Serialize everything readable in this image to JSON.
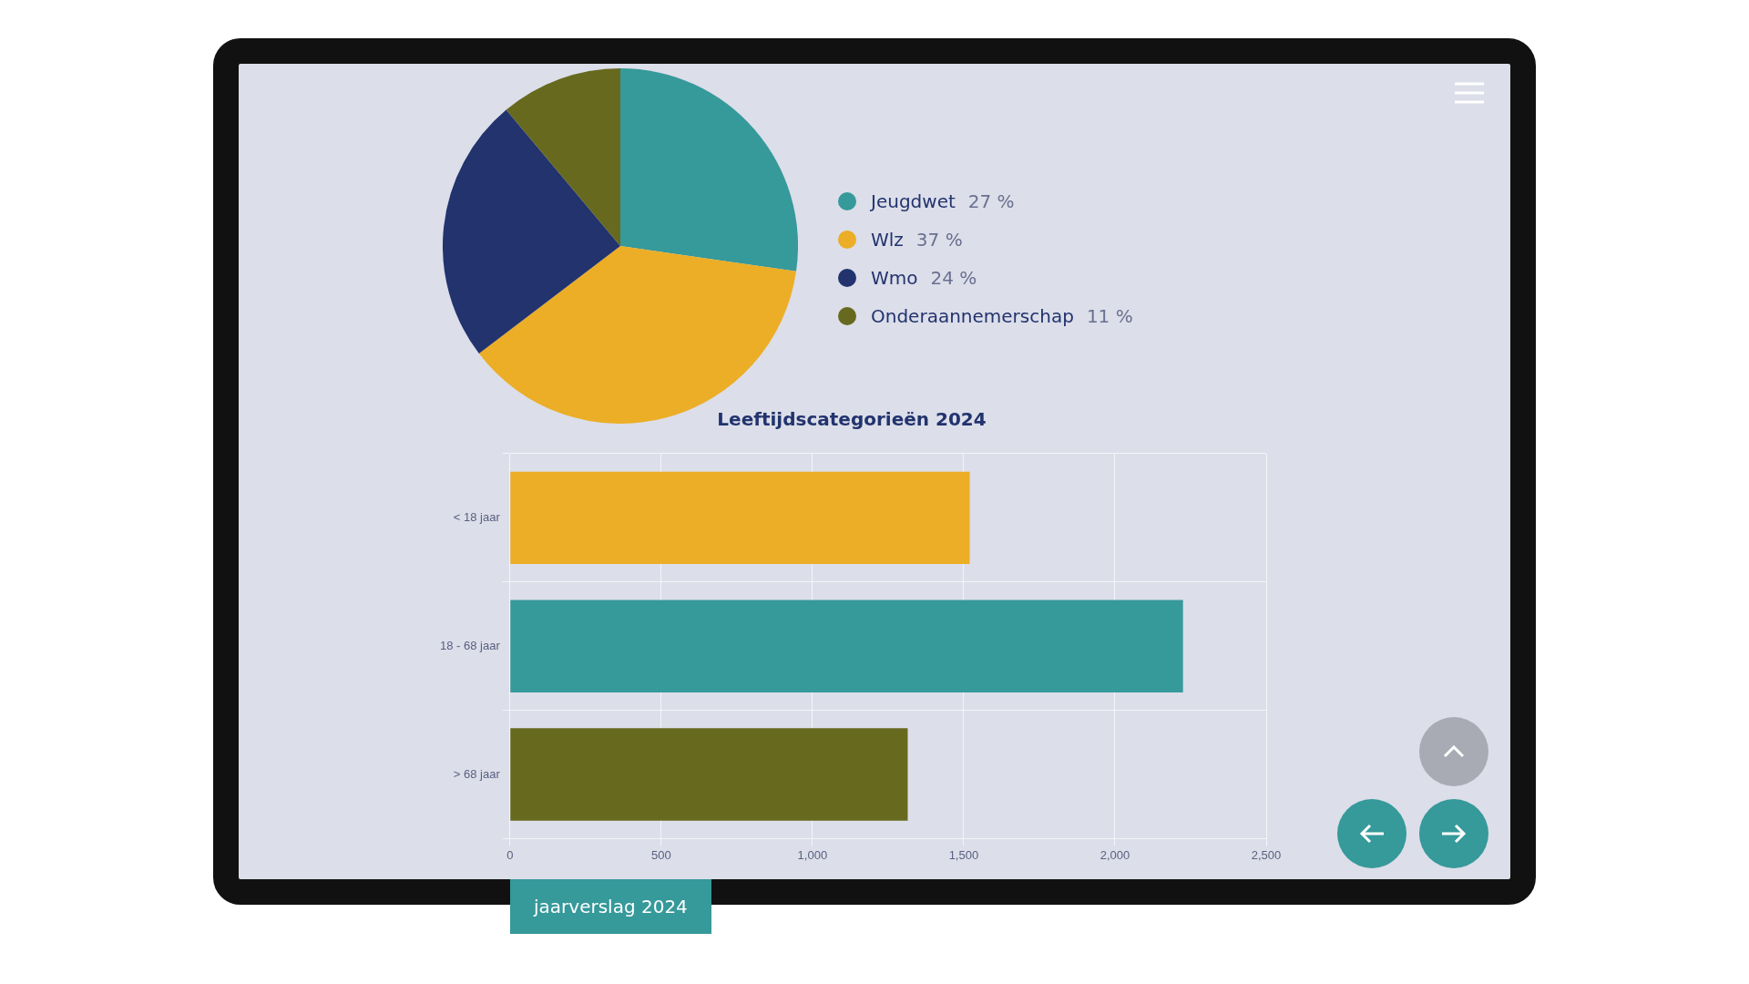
{
  "chart_data": [
    {
      "type": "pie",
      "categories": [
        "Jeugdwet",
        "Wlz",
        "Wmo",
        "Onderaannemerschap"
      ],
      "values": [
        27,
        37,
        24,
        11
      ],
      "value_labels": [
        "27 %",
        "37 %",
        "24 %",
        "11 %"
      ],
      "colors": [
        "#36999a",
        "#ebae26",
        "#22336e",
        "#67691f"
      ],
      "legend": "right"
    },
    {
      "type": "bar",
      "orientation": "horizontal",
      "title": "Leeftijdscategorieën 2024",
      "categories": [
        "< 18 jaar",
        "18 - 68 jaar",
        "> 68 jaar"
      ],
      "values": [
        1520,
        2225,
        1315
      ],
      "colors": [
        "#ebae26",
        "#36999a",
        "#67691f"
      ],
      "xlim": [
        0,
        2500
      ],
      "xticks": [
        0,
        {
          "value": 500,
          "label": "500"
        },
        {
          "value": 1000,
          "label": "1,000"
        },
        {
          "value": 1500,
          "label": "1,500"
        },
        {
          "value": 2000,
          "label": "2,000"
        },
        {
          "value": 2500,
          "label": "2,500"
        }
      ],
      "grid": true,
      "annotations": [
        "jaarverslag 2024"
      ]
    }
  ]
}
